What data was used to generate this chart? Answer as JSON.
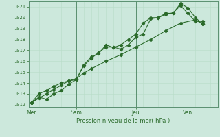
{
  "bg_color": "#cce8dc",
  "grid_color_major": "#a0c8b0",
  "grid_color_minor": "#b8dcc8",
  "line_color": "#2a6a2a",
  "title": "Pression niveau de la mer( hPa )",
  "ylabel_values": [
    1012,
    1013,
    1014,
    1015,
    1016,
    1017,
    1018,
    1019,
    1020,
    1021
  ],
  "ylim": [
    1011.8,
    1021.5
  ],
  "xlim": [
    -0.2,
    12.5
  ],
  "day_labels": [
    "Mer",
    "Sam",
    "Jeu",
    "Ven"
  ],
  "day_positions": [
    0.0,
    3.0,
    7.0,
    10.5
  ],
  "series1_x": [
    0.0,
    0.5,
    1.0,
    1.5,
    2.0,
    2.5,
    3.0,
    3.5,
    4.0,
    4.5,
    5.0,
    5.5,
    6.0,
    6.5,
    7.0,
    7.5,
    8.0,
    8.5,
    9.0,
    9.5,
    10.0,
    10.5,
    11.0,
    11.5
  ],
  "series1_y": [
    1012.2,
    1012.7,
    1012.5,
    1013.0,
    1013.3,
    1013.9,
    1014.3,
    1015.6,
    1016.25,
    1016.8,
    1017.3,
    1017.3,
    1017.1,
    1017.5,
    1018.2,
    1018.5,
    1019.9,
    1020.0,
    1020.3,
    1020.45,
    1021.1,
    1020.4,
    1019.65,
    1019.7
  ],
  "series2_x": [
    0.0,
    0.5,
    1.0,
    1.5,
    2.0,
    2.5,
    3.0,
    3.5,
    4.0,
    4.5,
    5.0,
    5.5,
    6.0,
    6.5,
    7.0,
    7.5,
    8.0,
    8.5,
    9.0,
    9.5,
    10.0,
    10.5,
    11.0,
    11.5
  ],
  "series2_y": [
    1012.2,
    1013.0,
    1013.3,
    1013.7,
    1014.0,
    1014.2,
    1014.3,
    1015.65,
    1016.4,
    1016.7,
    1017.5,
    1017.25,
    1017.5,
    1018.0,
    1018.5,
    1019.5,
    1020.0,
    1020.0,
    1020.4,
    1020.4,
    1021.3,
    1020.9,
    1020.0,
    1019.4
  ],
  "series3_x": [
    0.0,
    0.5,
    1.0,
    1.5,
    2.0,
    2.5,
    3.0,
    3.5,
    4.0,
    5.0,
    6.0,
    7.0,
    8.0,
    9.0,
    10.0,
    11.0,
    11.5
  ],
  "series3_y": [
    1012.2,
    1012.6,
    1013.0,
    1013.4,
    1013.8,
    1014.2,
    1014.4,
    1014.9,
    1015.3,
    1016.0,
    1016.6,
    1017.3,
    1018.0,
    1018.8,
    1019.5,
    1019.8,
    1019.4
  ]
}
